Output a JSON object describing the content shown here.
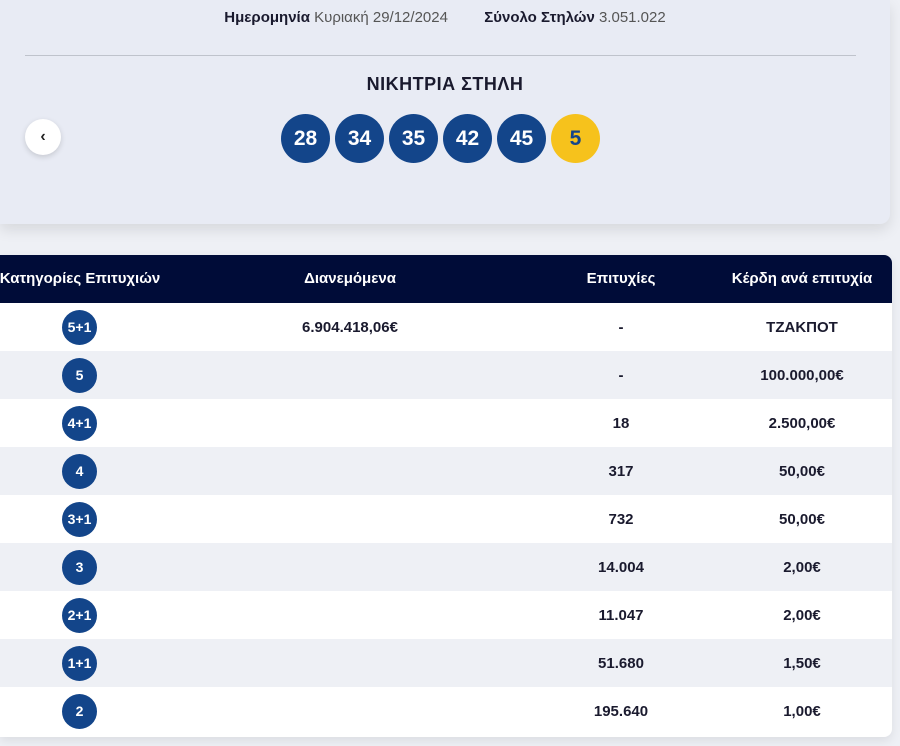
{
  "draw_info": {
    "date_label": "Ημερομηνία",
    "date_value": "Κυριακή 29/12/2024",
    "columns_label": "Σύνολο Στηλών",
    "columns_value": "3.051.022"
  },
  "winning": {
    "title": "ΝΙΚΗΤΡΙΑ ΣΤΗΛΗ",
    "numbers": [
      "28",
      "34",
      "35",
      "42",
      "45"
    ],
    "joker": "5",
    "prev_icon": "chevron-left-icon"
  },
  "colors": {
    "ball": "#13458a",
    "joker": "#f6c21c",
    "header": "#000c38"
  },
  "table": {
    "headers": {
      "category": "Κατηγορίες Επιτυχιών",
      "distributed": "Διανεμόμενα",
      "winners": "Επιτυχίες",
      "prize": "Κέρδη ανά επιτυχία"
    },
    "rows": [
      {
        "category": "5+1",
        "distributed": "6.904.418,06€",
        "winners": "-",
        "prize": "ΤΖΑΚΠΟΤ"
      },
      {
        "category": "5",
        "distributed": "",
        "winners": "-",
        "prize": "100.000,00€"
      },
      {
        "category": "4+1",
        "distributed": "",
        "winners": "18",
        "prize": "2.500,00€"
      },
      {
        "category": "4",
        "distributed": "",
        "winners": "317",
        "prize": "50,00€"
      },
      {
        "category": "3+1",
        "distributed": "",
        "winners": "732",
        "prize": "50,00€"
      },
      {
        "category": "3",
        "distributed": "",
        "winners": "14.004",
        "prize": "2,00€"
      },
      {
        "category": "2+1",
        "distributed": "",
        "winners": "11.047",
        "prize": "2,00€"
      },
      {
        "category": "1+1",
        "distributed": "",
        "winners": "51.680",
        "prize": "1,50€"
      },
      {
        "category": "2",
        "distributed": "",
        "winners": "195.640",
        "prize": "1,00€"
      }
    ]
  }
}
